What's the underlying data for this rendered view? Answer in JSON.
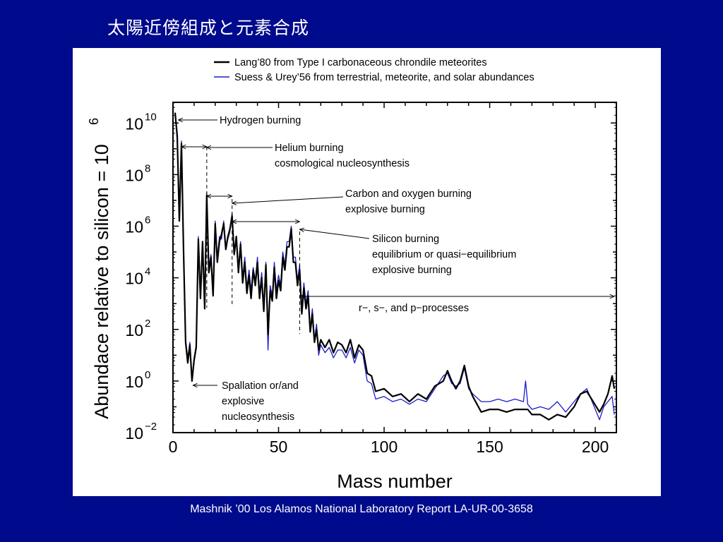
{
  "slide": {
    "title": "太陽近傍組成と元素合成",
    "citation": "Mashnik ’00 Los Alamos National Laboratory Report LA-UR-00-3658"
  },
  "colors": {
    "background": "#000a8c",
    "series_lang": "#000000",
    "series_suess": "#1a1acc",
    "text": "#ffffff"
  },
  "chart_data": {
    "type": "line",
    "title": "",
    "xlabel": "Mass number",
    "ylabel": "Abundace relative to silicon = 10",
    "ylabel_exponent": "6",
    "xlim": [
      0,
      210
    ],
    "ylim_log10": [
      -2,
      10.8
    ],
    "yscale": "log",
    "x_ticks": [
      0,
      50,
      100,
      150,
      200
    ],
    "x_tick_labels": [
      "0",
      "50",
      "100",
      "150",
      "200"
    ],
    "y_ticks_log10": [
      10,
      8,
      6,
      4,
      2,
      0,
      -2
    ],
    "y_tick_labels": [
      {
        "base": "10",
        "exp": "10"
      },
      {
        "base": "10",
        "exp": "8"
      },
      {
        "base": "10",
        "exp": "6"
      },
      {
        "base": "10",
        "exp": "4"
      },
      {
        "base": "10",
        "exp": "2"
      },
      {
        "base": "10",
        "exp": "0"
      },
      {
        "base": "10",
        "exp": "−2"
      }
    ],
    "legend": "top",
    "grid": false,
    "series": [
      {
        "name": "Lang’80 from Type I carbonaceous chrondile meteorites",
        "color": "#000000",
        "points": [
          [
            1,
            10.4
          ],
          [
            2,
            9.5
          ],
          [
            3,
            6.2
          ],
          [
            4,
            9.2
          ],
          [
            5,
            5
          ],
          [
            6,
            1.5
          ],
          [
            7,
            0.7
          ],
          [
            8,
            1.4
          ],
          [
            9,
            0
          ],
          [
            10,
            0.8
          ],
          [
            11,
            1.3
          ],
          [
            12,
            5.5
          ],
          [
            13,
            3.2
          ],
          [
            14,
            5.4
          ],
          [
            15,
            2.8
          ],
          [
            16,
            7.2
          ],
          [
            17,
            4.2
          ],
          [
            18,
            4.8
          ],
          [
            19,
            3.3
          ],
          [
            20,
            6.1
          ],
          [
            21,
            4.6
          ],
          [
            22,
            5.4
          ],
          [
            23,
            5.7
          ],
          [
            24,
            6.1
          ],
          [
            25,
            5.1
          ],
          [
            26,
            5.6
          ],
          [
            27,
            5.9
          ],
          [
            28,
            6.4
          ],
          [
            29,
            4.9
          ],
          [
            30,
            5.6
          ],
          [
            31,
            4.2
          ],
          [
            32,
            5.3
          ],
          [
            33,
            3.8
          ],
          [
            34,
            4.6
          ],
          [
            35,
            3.4
          ],
          [
            36,
            4.1
          ],
          [
            37,
            3.2
          ],
          [
            38,
            4.3
          ],
          [
            39,
            3.7
          ],
          [
            40,
            4.6
          ],
          [
            41,
            3.2
          ],
          [
            42,
            4
          ],
          [
            43,
            2.7
          ],
          [
            44,
            4.5
          ],
          [
            45,
            1.8
          ],
          [
            46,
            3.5
          ],
          [
            47,
            3.1
          ],
          [
            48,
            4.4
          ],
          [
            49,
            3.2
          ],
          [
            50,
            3.9
          ],
          [
            51,
            3.5
          ],
          [
            52,
            4.8
          ],
          [
            53,
            4.3
          ],
          [
            54,
            5.2
          ],
          [
            55,
            5.2
          ],
          [
            56,
            5.9
          ],
          [
            57,
            4.6
          ],
          [
            58,
            4.6
          ],
          [
            59,
            3.7
          ],
          [
            60,
            4.3
          ],
          [
            61,
            2.6
          ],
          [
            62,
            3.6
          ],
          [
            63,
            2.8
          ],
          [
            64,
            3.3
          ],
          [
            65,
            1.9
          ],
          [
            66,
            2.6
          ],
          [
            67,
            1.5
          ],
          [
            68,
            2
          ],
          [
            69,
            1.2
          ],
          [
            70,
            1.6
          ],
          [
            72,
            1.3
          ],
          [
            74,
            1.6
          ],
          [
            76,
            1.1
          ],
          [
            78,
            1.5
          ],
          [
            80,
            1.4
          ],
          [
            82,
            1.1
          ],
          [
            84,
            1.6
          ],
          [
            86,
            0.9
          ],
          [
            88,
            1.4
          ],
          [
            90,
            1.2
          ],
          [
            92,
            0.3
          ],
          [
            94,
            0.2
          ],
          [
            96,
            -0.4
          ],
          [
            100,
            -0.3
          ],
          [
            104,
            -0.6
          ],
          [
            108,
            -0.5
          ],
          [
            112,
            -0.8
          ],
          [
            116,
            -0.5
          ],
          [
            120,
            -0.7
          ],
          [
            124,
            -0.2
          ],
          [
            128,
            0
          ],
          [
            130,
            0.4
          ],
          [
            132,
            0
          ],
          [
            134,
            -0.3
          ],
          [
            136,
            0
          ],
          [
            138,
            0.6
          ],
          [
            140,
            -0.2
          ],
          [
            142,
            -0.6
          ],
          [
            146,
            -1.2
          ],
          [
            150,
            -1.1
          ],
          [
            154,
            -1.1
          ],
          [
            158,
            -1.2
          ],
          [
            162,
            -1.1
          ],
          [
            166,
            -1.1
          ],
          [
            168,
            -1.1
          ],
          [
            170,
            -1.3
          ],
          [
            174,
            -1.3
          ],
          [
            178,
            -1.5
          ],
          [
            182,
            -1.3
          ],
          [
            186,
            -1.4
          ],
          [
            190,
            -1
          ],
          [
            193,
            -0.5
          ],
          [
            196,
            -0.4
          ],
          [
            199,
            -0.8
          ],
          [
            202,
            -1.2
          ],
          [
            204,
            -0.9
          ],
          [
            206,
            -0.5
          ],
          [
            208,
            0.2
          ],
          [
            209,
            -0.3
          ]
        ]
      },
      {
        "name": "Suess & Urey’56 from terrestrial, meteorite, and solar abundances",
        "color": "#1a1acc",
        "points": [
          [
            1,
            10.4
          ],
          [
            2,
            9.3
          ],
          [
            3,
            6.4
          ],
          [
            4,
            9.3
          ],
          [
            5,
            5.1
          ],
          [
            6,
            1.6
          ],
          [
            7,
            0.9
          ],
          [
            8,
            1.5
          ],
          [
            9,
            0.1
          ],
          [
            10,
            0.9
          ],
          [
            11,
            1.4
          ],
          [
            12,
            5.6
          ],
          [
            13,
            3.4
          ],
          [
            14,
            5.3
          ],
          [
            15,
            3
          ],
          [
            16,
            7.3
          ],
          [
            17,
            4.4
          ],
          [
            18,
            4.9
          ],
          [
            19,
            3.4
          ],
          [
            20,
            6.2
          ],
          [
            21,
            4.8
          ],
          [
            22,
            5.6
          ],
          [
            23,
            5.5
          ],
          [
            24,
            6.2
          ],
          [
            25,
            5.2
          ],
          [
            26,
            5.5
          ],
          [
            27,
            5.8
          ],
          [
            28,
            6.5
          ],
          [
            29,
            5
          ],
          [
            30,
            5.5
          ],
          [
            31,
            4.4
          ],
          [
            32,
            5.4
          ],
          [
            33,
            4
          ],
          [
            34,
            4.8
          ],
          [
            35,
            3.6
          ],
          [
            36,
            4.3
          ],
          [
            37,
            3.5
          ],
          [
            38,
            4.4
          ],
          [
            39,
            3.9
          ],
          [
            40,
            4.8
          ],
          [
            41,
            3.4
          ],
          [
            42,
            4.2
          ],
          [
            43,
            2.9
          ],
          [
            44,
            4.6
          ],
          [
            45,
            1.2
          ],
          [
            46,
            3.7
          ],
          [
            47,
            3.3
          ],
          [
            48,
            4.6
          ],
          [
            49,
            3.5
          ],
          [
            50,
            4.1
          ],
          [
            51,
            3.7
          ],
          [
            52,
            5
          ],
          [
            53,
            4.5
          ],
          [
            54,
            5.4
          ],
          [
            55,
            5.4
          ],
          [
            56,
            6
          ],
          [
            57,
            4.8
          ],
          [
            58,
            4.8
          ],
          [
            59,
            3.9
          ],
          [
            60,
            4.5
          ],
          [
            61,
            2.8
          ],
          [
            62,
            3.8
          ],
          [
            63,
            3
          ],
          [
            64,
            3.5
          ],
          [
            65,
            2
          ],
          [
            66,
            2.8
          ],
          [
            67,
            1.6
          ],
          [
            68,
            2.2
          ],
          [
            69,
            1
          ],
          [
            70,
            1.4
          ],
          [
            72,
            1.1
          ],
          [
            74,
            1.3
          ],
          [
            76,
            0.9
          ],
          [
            78,
            1.2
          ],
          [
            80,
            1.2
          ],
          [
            82,
            0.9
          ],
          [
            84,
            1.3
          ],
          [
            86,
            0.7
          ],
          [
            88,
            1.2
          ],
          [
            90,
            1
          ],
          [
            92,
            0
          ],
          [
            94,
            -0.1
          ],
          [
            96,
            -0.7
          ],
          [
            100,
            -0.6
          ],
          [
            104,
            -0.8
          ],
          [
            108,
            -0.7
          ],
          [
            112,
            -0.9
          ],
          [
            116,
            -0.7
          ],
          [
            120,
            -0.8
          ],
          [
            124,
            -0.3
          ],
          [
            128,
            0.2
          ],
          [
            130,
            0.3
          ],
          [
            132,
            -0.1
          ],
          [
            134,
            -0.2
          ],
          [
            136,
            -0.1
          ],
          [
            138,
            0.5
          ],
          [
            140,
            -0.3
          ],
          [
            142,
            -0.5
          ],
          [
            146,
            -0.8
          ],
          [
            150,
            -0.8
          ],
          [
            154,
            -0.7
          ],
          [
            158,
            -0.8
          ],
          [
            162,
            -0.7
          ],
          [
            166,
            -0.8
          ],
          [
            167,
            0
          ],
          [
            168,
            -0.9
          ],
          [
            170,
            -1.1
          ],
          [
            174,
            -1
          ],
          [
            178,
            -1.1
          ],
          [
            182,
            -0.8
          ],
          [
            186,
            -1.2
          ],
          [
            190,
            -0.8
          ],
          [
            193,
            -0.5
          ],
          [
            196,
            -0.3
          ],
          [
            199,
            -0.9
          ],
          [
            202,
            -1.5
          ],
          [
            204,
            -1
          ],
          [
            206,
            -0.8
          ],
          [
            208,
            -0.6
          ],
          [
            209,
            -1.3
          ]
        ]
      }
    ],
    "annotations": [
      {
        "id": "hydrogen",
        "lines": [
          "Hydrogen burning"
        ]
      },
      {
        "id": "helium",
        "lines": [
          "Helium burning",
          "cosmological nucleosynthesis"
        ]
      },
      {
        "id": "carbon",
        "lines": [
          "Carbon and oxygen burning",
          "explosive burning"
        ]
      },
      {
        "id": "silicon",
        "lines": [
          "Silicon burning",
          "equilibrium or quasi−equilibrium",
          "explosive burning"
        ]
      },
      {
        "id": "rsp",
        "lines": [
          "r−, s−, and p−processes"
        ]
      },
      {
        "id": "spallation",
        "lines": [
          "Spallation or/and",
          "explosive",
          "nucleosynthesis"
        ]
      }
    ]
  }
}
